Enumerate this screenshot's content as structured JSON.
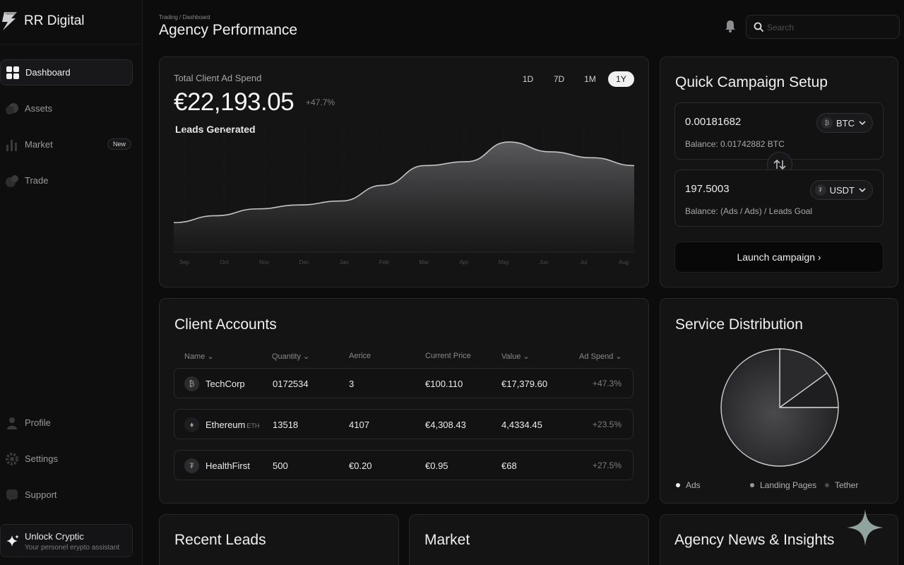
{
  "app": {
    "brand": "RR Digital"
  },
  "sidebar": {
    "items": [
      {
        "label": "Dashboard",
        "icon": "grid-icon",
        "active": true
      },
      {
        "label": "Assets",
        "icon": "coins-icon"
      },
      {
        "label": "Market",
        "icon": "bar-chart-icon",
        "badge": "New"
      },
      {
        "label": "Trade",
        "icon": "trade-icon"
      }
    ],
    "bottom_items": [
      {
        "label": "Profile",
        "icon": "user-icon"
      },
      {
        "label": "Settings",
        "icon": "gear-icon"
      },
      {
        "label": "Support",
        "icon": "support-icon"
      }
    ],
    "promo": {
      "title": "Unlock Cryptic",
      "subtitle": "Your personel erypto assistant"
    }
  },
  "header": {
    "breadcrumb": "Trading / Dashboard",
    "title": "Agency Performance",
    "search_placeholder": "Search"
  },
  "performance": {
    "label": "Total Client Ad Spend",
    "value": "€22,193.05",
    "change": "+47.7%",
    "sub_label": "Leads Generated",
    "ranges": [
      "1D",
      "7D",
      "1M",
      "1Y"
    ],
    "active_range": "1Y"
  },
  "chart_data": {
    "type": "area",
    "title": "Leads Generated",
    "categories": [
      "Sep",
      "Oct",
      "Nov",
      "Dec",
      "Jan",
      "Feb",
      "Mar",
      "Apr",
      "May",
      "Jun",
      "Jul",
      "Aug"
    ],
    "values": [
      30,
      37,
      44,
      48,
      52,
      68,
      88,
      92,
      112,
      102,
      96,
      88
    ],
    "ylim": [
      0,
      130
    ],
    "grid": "vertical",
    "colors": {
      "line": "#c4c4c6",
      "fill": "#5a5a5c"
    }
  },
  "campaign": {
    "title": "Quick Campaign Setup",
    "from": {
      "amount": "0.00181682",
      "coin": "BTC",
      "balance": "Balance: 0.01742882 BTC"
    },
    "to": {
      "amount": "197.5003",
      "coin": "USDT",
      "balance": "Balance: (Ads / Ads) / Leads Goal"
    },
    "button": "Launch campaign ›"
  },
  "accounts": {
    "title": "Client Accounts",
    "columns": [
      "Name",
      "Quantity",
      "Aerice",
      "Current Price",
      "Value",
      "Ad Spend"
    ],
    "sortable": [
      true,
      true,
      false,
      false,
      true,
      true
    ],
    "rows": [
      {
        "name": "TechCorp",
        "symbol": "",
        "quantity": "0172534",
        "price": "3",
        "current": "€100.110",
        "value": "€17,379.60",
        "spend": "+47.3%"
      },
      {
        "name": "Ethereum",
        "symbol": "ETH",
        "quantity": "13518",
        "price": "4107",
        "current": "€4,308.43",
        "value": "4,4334.45",
        "spend": "+23.5%"
      },
      {
        "name": "HealthFirst",
        "symbol": "",
        "quantity": "500",
        "price": "€0.20",
        "current": "€0.95",
        "value": "€68",
        "spend": "+27.5%"
      }
    ]
  },
  "distribution": {
    "title": "Service Distribution",
    "slices": [
      {
        "label": "Ads",
        "value": 75,
        "color": "#3a3a3c"
      },
      {
        "label": "Landing Pages",
        "value": 15,
        "color": "#2a2a2c"
      },
      {
        "label": "Tether",
        "value": 10,
        "color": "#1e1e20"
      }
    ],
    "legend_colors": [
      "#f0f0f0",
      "#9a9a9c",
      "#4a4a4c"
    ]
  },
  "bottom_cards": {
    "recent": "Recent Leads",
    "market": "Market",
    "news": "Agency News & Insights"
  },
  "colors": {
    "background": "#0c0c0d",
    "card": "#141415",
    "accent": "#f0f0f0"
  }
}
